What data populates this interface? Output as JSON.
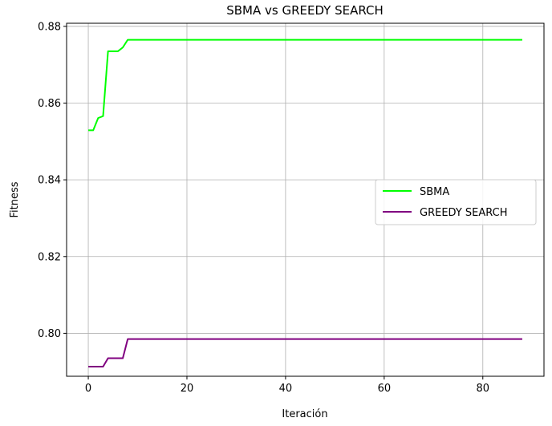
{
  "chart_data": {
    "type": "line",
    "title": "SBMA vs GREEDY SEARCH",
    "xlabel": "Iteración",
    "ylabel": "Fitness",
    "xlim": [
      -4.4,
      92.4
    ],
    "ylim": [
      0.7888,
      0.8808
    ],
    "xticks": [
      0,
      20,
      40,
      60,
      80
    ],
    "xtick_labels": [
      "0",
      "20",
      "40",
      "60",
      "80"
    ],
    "yticks": [
      0.8,
      0.82,
      0.84,
      0.86,
      0.88
    ],
    "ytick_labels": [
      "0.80",
      "0.82",
      "0.84",
      "0.86",
      "0.88"
    ],
    "grid": true,
    "legend_position": "center-right",
    "series": [
      {
        "name": "SBMA",
        "color": "#00ff00",
        "x": [
          0,
          1,
          2,
          3,
          4,
          5,
          6,
          7,
          8,
          88
        ],
        "y": [
          0.8529,
          0.8529,
          0.8561,
          0.8566,
          0.8735,
          0.8735,
          0.8735,
          0.8745,
          0.8765,
          0.8765
        ]
      },
      {
        "name": "GREEDY SEARCH",
        "color": "#800080",
        "x": [
          0,
          1,
          2,
          3,
          4,
          5,
          6,
          7,
          8,
          88
        ],
        "y": [
          0.7913,
          0.7913,
          0.7913,
          0.7913,
          0.7935,
          0.7935,
          0.7935,
          0.7935,
          0.7985,
          0.7985
        ]
      }
    ]
  }
}
